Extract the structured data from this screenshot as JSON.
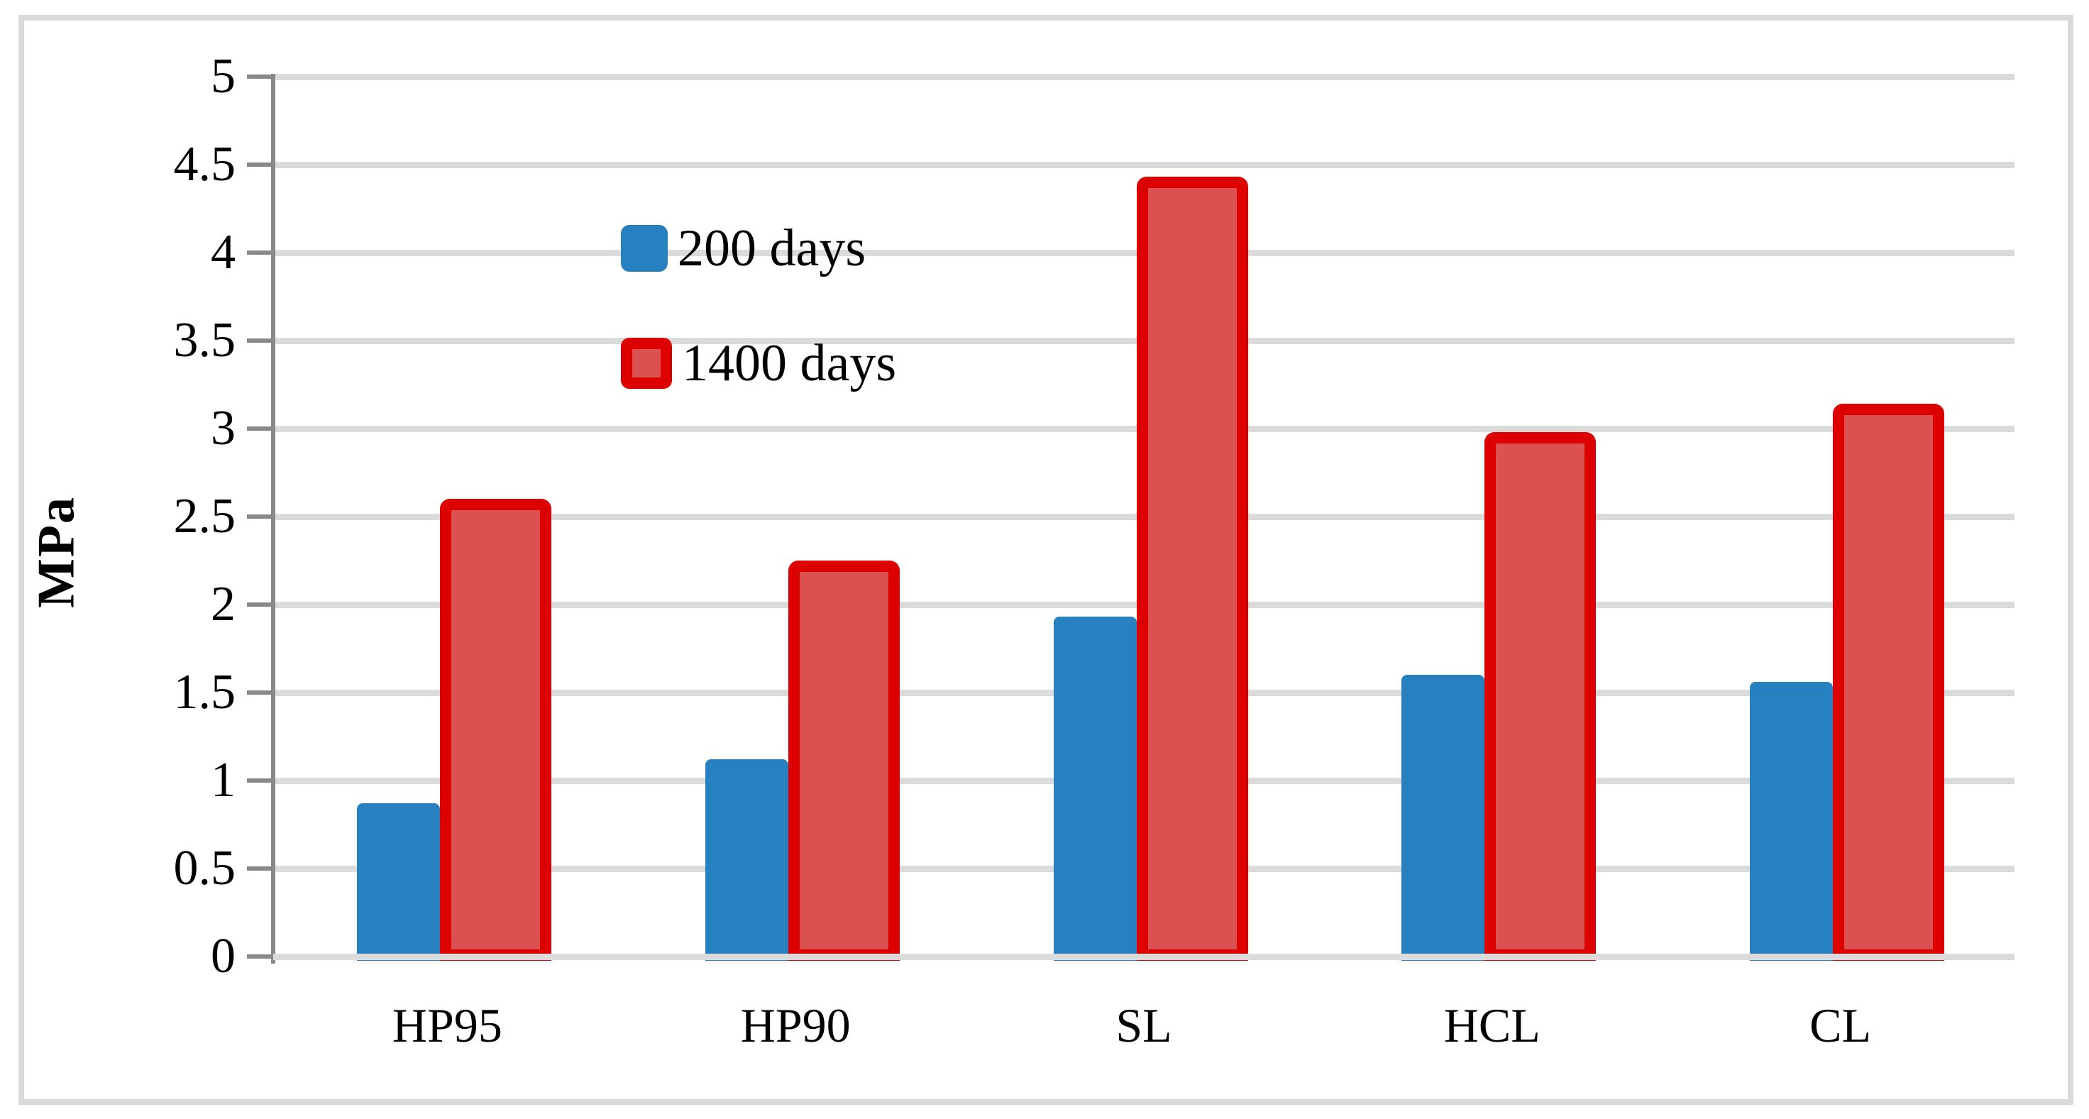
{
  "figure": {
    "background": "#FFFFFF",
    "frame_color": "#D9D9D9"
  },
  "chart_data": {
    "type": "bar",
    "title": "",
    "categories": [
      "HP95",
      "HP90",
      "SL",
      "HCL",
      "CL"
    ],
    "series": [
      {
        "name": "200 days",
        "values": [
          0.87,
          1.12,
          1.93,
          1.6,
          1.56
        ],
        "fill": "#2780BF",
        "border": null
      },
      {
        "name": "1400 days",
        "values": [
          2.6,
          2.25,
          4.43,
          2.98,
          3.14
        ],
        "fill": "#DB5151",
        "border": "#DD0000"
      }
    ],
    "xlabel": "",
    "ylabel": "MPa",
    "ylim": [
      0,
      5
    ],
    "ytick_step": 0.5,
    "ytick_labels": [
      "0",
      "0.5",
      "1",
      "1.5",
      "2",
      "2.5",
      "3",
      "3.5",
      "4",
      "4.5",
      "5"
    ],
    "grid": true,
    "gridline_color": "#DBDBDB",
    "axis_color": "#898989",
    "text_color": "#000000",
    "legend_position": "top-left-inside"
  }
}
